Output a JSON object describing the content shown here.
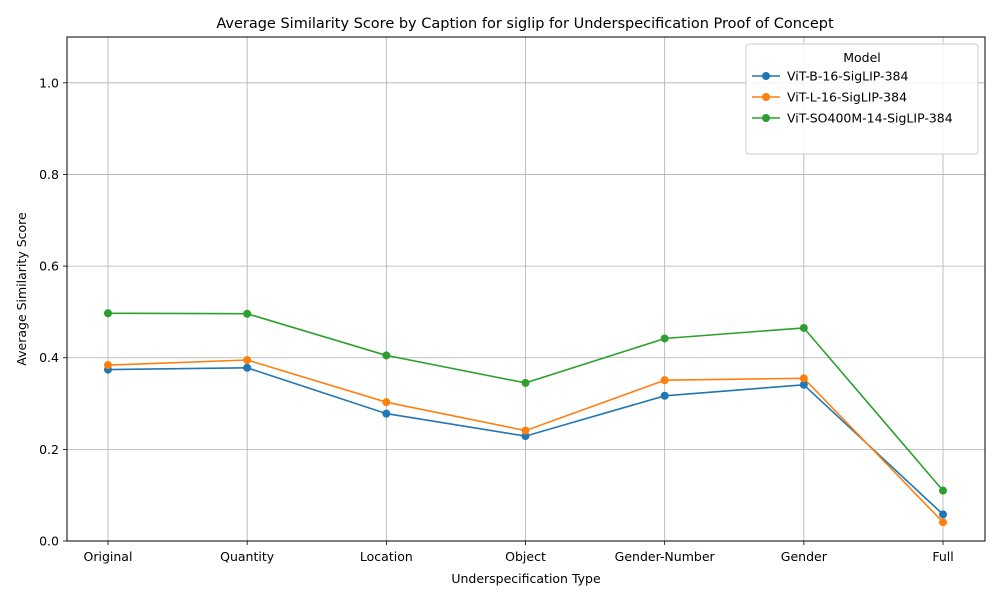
{
  "chart_data": {
    "type": "line",
    "title": "Average Similarity Score by Caption for siglip for Underspecification Proof of Concept",
    "xlabel": "Underspecification Type",
    "ylabel": "Average Similarity Score",
    "categories": [
      "Original",
      "Quantity",
      "Location",
      "Object",
      "Gender-Number",
      "Gender",
      "Full"
    ],
    "ylim": [
      0,
      1.1
    ],
    "yticks": [
      "0.0",
      "0.2",
      "0.4",
      "0.6",
      "0.8",
      "1.0"
    ],
    "ytick_values": [
      0,
      0.2,
      0.4,
      0.6,
      0.8,
      1.0
    ],
    "grid": true,
    "legend": {
      "title": "Model",
      "placement": "top-right"
    },
    "series": [
      {
        "name": "ViT-B-16-SigLIP-384",
        "color": "#1f77b4",
        "values": [
          0.374,
          0.378,
          0.278,
          0.229,
          0.317,
          0.341,
          0.058
        ]
      },
      {
        "name": "ViT-L-16-SigLIP-384",
        "color": "#ff7f0e",
        "values": [
          0.384,
          0.395,
          0.303,
          0.241,
          0.351,
          0.355,
          0.041
        ]
      },
      {
        "name": "ViT-SO400M-14-SigLIP-384",
        "color": "#2ca02c",
        "values": [
          0.497,
          0.496,
          0.405,
          0.345,
          0.442,
          0.465,
          0.11
        ]
      }
    ]
  }
}
